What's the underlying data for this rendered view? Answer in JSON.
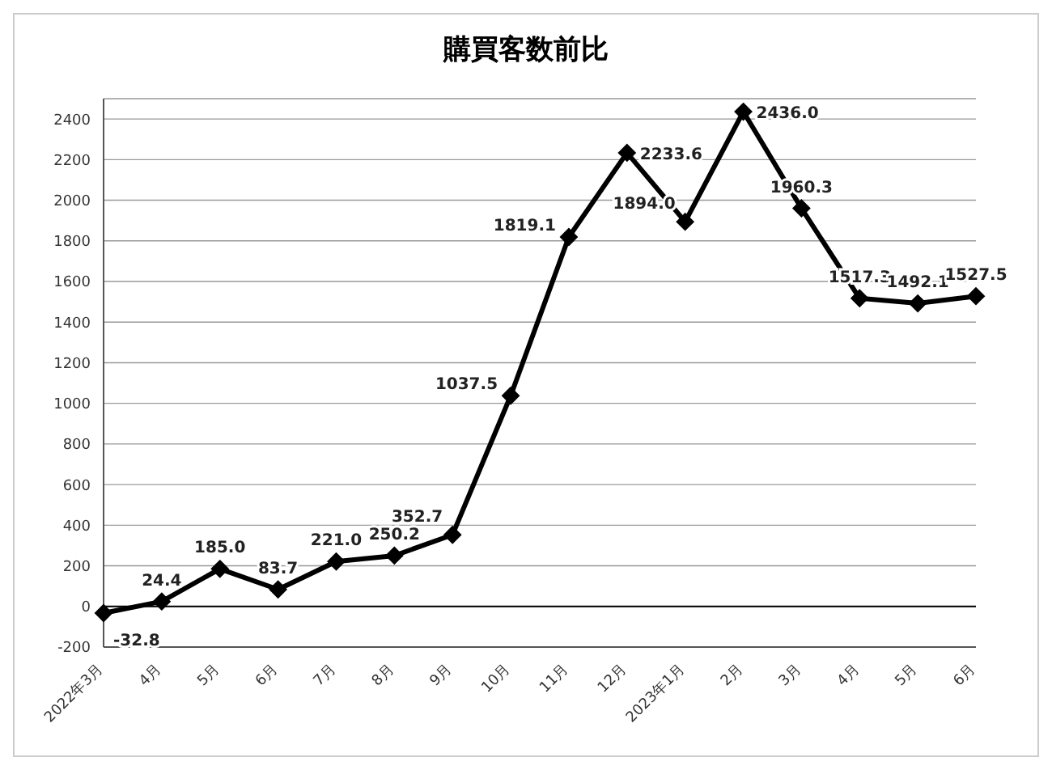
{
  "chart_data": {
    "type": "line",
    "title": "購買客数前比",
    "categories": [
      "2022年3月",
      "4月",
      "5月",
      "6月",
      "7月",
      "8月",
      "9月",
      "10月",
      "11月",
      "12月",
      "2023年1月",
      "2月",
      "3月",
      "4月",
      "5月",
      "6月"
    ],
    "series": [
      {
        "color": "#000000",
        "values": [
          -32.8,
          24.4,
          185.0,
          83.7,
          221.0,
          250.2,
          352.7,
          1037.5,
          1819.1,
          2233.6,
          1894.0,
          2436.0,
          1960.3,
          1517.3,
          1492.1,
          1527.5
        ],
        "value_labels": [
          "-32.8",
          "24.4",
          "185.0",
          "83.7",
          "221.0",
          "250.2",
          "352.7",
          "1037.5",
          "1819.1",
          "2233.6",
          "1894.0",
          "2436.0",
          "1960.3",
          "1517.3",
          "1492.1",
          "1527.5"
        ]
      }
    ],
    "ylim": [
      -200,
      2500
    ],
    "yticks": [
      -200,
      0,
      200,
      400,
      600,
      800,
      1000,
      1200,
      1400,
      1600,
      1800,
      2000,
      2200,
      2400
    ],
    "grid": "y",
    "marker": "diamond",
    "line_style": "solid",
    "ref_lines": [
      {
        "axis": "y",
        "value": 0,
        "color": "#000000"
      }
    ]
  }
}
